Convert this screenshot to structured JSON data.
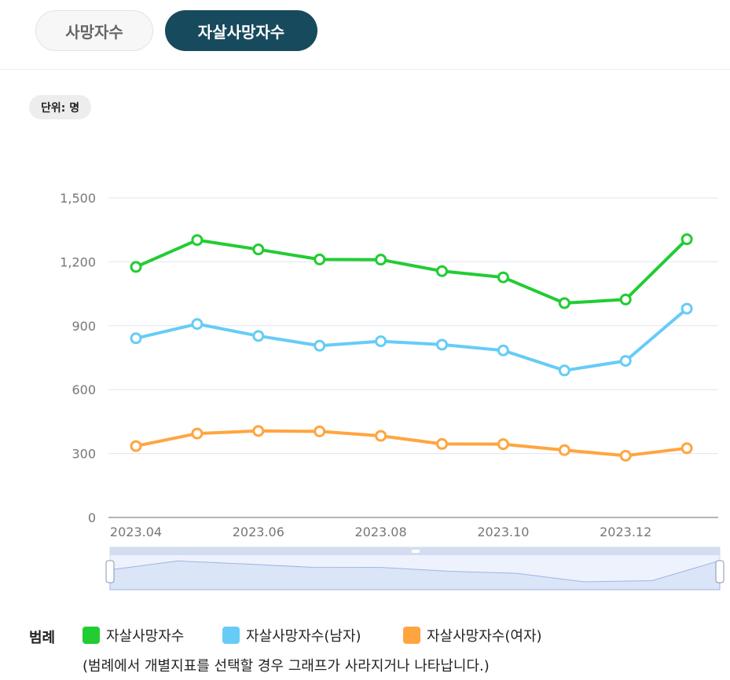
{
  "tabs": [
    {
      "label": "사망자수",
      "active": false
    },
    {
      "label": "자살사망자수",
      "active": true
    }
  ],
  "unit_label": "단위: 명",
  "colors": {
    "accent": "#174a5c",
    "series": [
      "#22cc33",
      "#66ccf5",
      "#ffa540"
    ],
    "grid": "#e1e5f0",
    "zoom_fill": "#dbe5f8"
  },
  "chart_data": {
    "type": "line",
    "x": [
      "2023.04",
      "2023.05",
      "2023.06",
      "2023.07",
      "2023.08",
      "2023.09",
      "2023.10",
      "2023.11",
      "2023.12",
      "2024.01"
    ],
    "xtick_labels": [
      "2023.04",
      "2023.06",
      "2023.08",
      "2023.10",
      "2023.12"
    ],
    "ylim": [
      0,
      1500
    ],
    "yticks": [
      0,
      300,
      600,
      900,
      1200,
      1500
    ],
    "ytick_labels": [
      "0",
      "300",
      "600",
      "900",
      "1,200",
      "1,500"
    ],
    "grid": true,
    "series": [
      {
        "name": "자살사망자수",
        "color": "#22cc33",
        "values": [
          1176,
          1302,
          1258,
          1211,
          1210,
          1156,
          1127,
          1006,
          1023,
          1306
        ]
      },
      {
        "name": "자살사망자수(남자)",
        "color": "#66ccf5",
        "values": [
          841,
          908,
          852,
          806,
          827,
          811,
          784,
          690,
          735,
          980
        ]
      },
      {
        "name": "자살사망자수(여자)",
        "color": "#ffa540",
        "values": [
          335,
          394,
          406,
          404,
          383,
          345,
          344,
          316,
          290,
          325
        ]
      }
    ],
    "legend_position": "bottom-left"
  },
  "legend": {
    "title": "범례",
    "note": "(범례에서 개별지표를 선택할 경우 그래프가 사라지거나 나타납니다.)"
  }
}
